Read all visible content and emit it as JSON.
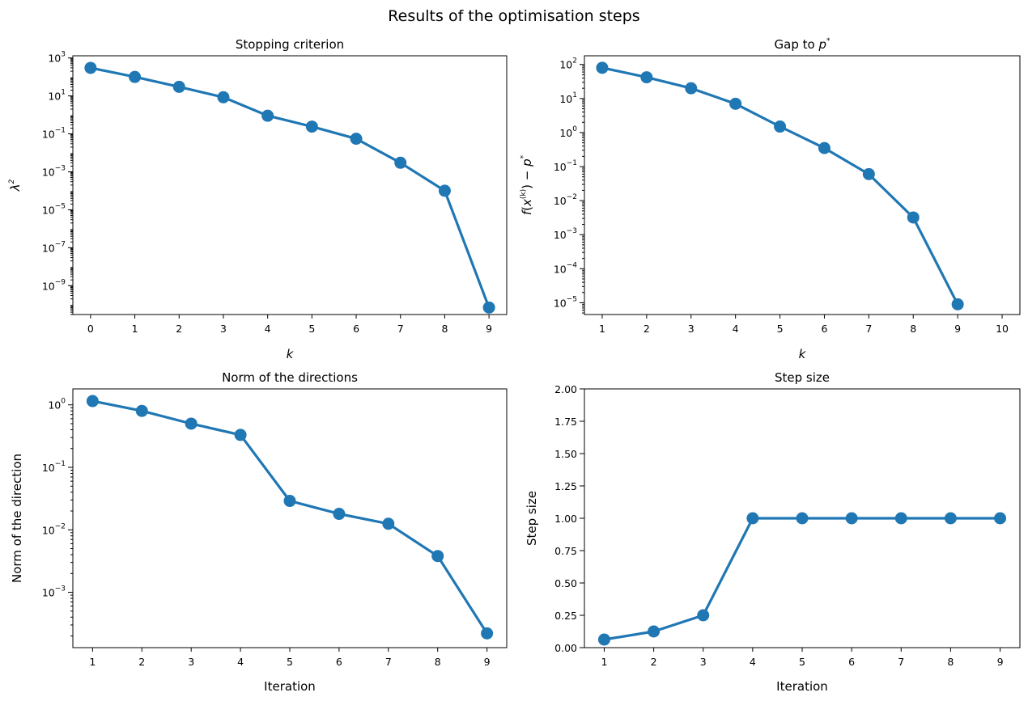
{
  "figure": {
    "title": "Results of the optimisation steps"
  },
  "chart_data": [
    {
      "type": "line",
      "title": "Stopping criterion",
      "xlabel": "k",
      "ylabel": "λ²",
      "yscale": "log",
      "x": [
        0,
        1,
        2,
        3,
        4,
        5,
        6,
        7,
        8,
        9
      ],
      "y": [
        300,
        100,
        30,
        8.5,
        0.9,
        0.24,
        0.055,
        0.003,
        0.0001,
        7e-11
      ],
      "xlim": [
        -0.4,
        9.4
      ],
      "ylim": [
        3e-11,
        1300
      ],
      "xticks": [
        0,
        1,
        2,
        3,
        4,
        5,
        6,
        7,
        8,
        9
      ],
      "yticks": [
        {
          "value": 1000.0,
          "base": "10",
          "exp": "3"
        },
        {
          "value": 10.0,
          "base": "10",
          "exp": "1"
        },
        {
          "value": 0.1,
          "base": "10",
          "exp": "−1"
        },
        {
          "value": 0.001,
          "base": "10",
          "exp": "−3"
        },
        {
          "value": 1e-05,
          "base": "10",
          "exp": "−5"
        },
        {
          "value": 1e-07,
          "base": "10",
          "exp": "−7"
        },
        {
          "value": 1e-09,
          "base": "10",
          "exp": "−9"
        }
      ],
      "color": "#1f77b4"
    },
    {
      "type": "line",
      "title": "Gap to p*",
      "xlabel": "k",
      "ylabel": "f(x^(k)) − p*",
      "yscale": "log",
      "x": [
        1,
        2,
        3,
        4,
        5,
        6,
        7,
        8,
        9
      ],
      "y": [
        80,
        42,
        20,
        7,
        1.5,
        0.35,
        0.06,
        0.0032,
        9e-06
      ],
      "xlim": [
        0.6,
        10.4
      ],
      "ylim": [
        4.5e-06,
        180
      ],
      "xticks": [
        1,
        2,
        3,
        4,
        5,
        6,
        7,
        8,
        9,
        10
      ],
      "yticks": [
        {
          "value": 100.0,
          "base": "10",
          "exp": "2"
        },
        {
          "value": 10.0,
          "base": "10",
          "exp": "1"
        },
        {
          "value": 1.0,
          "base": "10",
          "exp": "0"
        },
        {
          "value": 0.1,
          "base": "10",
          "exp": "−1"
        },
        {
          "value": 0.01,
          "base": "10",
          "exp": "−2"
        },
        {
          "value": 0.001,
          "base": "10",
          "exp": "−3"
        },
        {
          "value": 0.0001,
          "base": "10",
          "exp": "−4"
        },
        {
          "value": 1e-05,
          "base": "10",
          "exp": "−5"
        }
      ],
      "color": "#1f77b4"
    },
    {
      "type": "line",
      "title": "Norm of the directions",
      "xlabel": "Iteration",
      "ylabel": "Norm of the direction",
      "yscale": "log",
      "x": [
        1,
        2,
        3,
        4,
        5,
        6,
        7,
        8,
        9
      ],
      "y": [
        1.15,
        0.8,
        0.5,
        0.33,
        0.029,
        0.018,
        0.0125,
        0.0038,
        0.00022
      ],
      "xlim": [
        0.6,
        9.4
      ],
      "ylim": [
        0.00013,
        1.8
      ],
      "xticks": [
        1,
        2,
        3,
        4,
        5,
        6,
        7,
        8,
        9
      ],
      "yticks": [
        {
          "value": 1.0,
          "base": "10",
          "exp": "0"
        },
        {
          "value": 0.1,
          "base": "10",
          "exp": "−1"
        },
        {
          "value": 0.01,
          "base": "10",
          "exp": "−2"
        },
        {
          "value": 0.001,
          "base": "10",
          "exp": "−3"
        }
      ],
      "color": "#1f77b4"
    },
    {
      "type": "line",
      "title": "Step size",
      "xlabel": "Iteration",
      "ylabel": "Step size",
      "yscale": "linear",
      "x": [
        1,
        2,
        3,
        4,
        5,
        6,
        7,
        8,
        9
      ],
      "y": [
        0.0625,
        0.125,
        0.25,
        1.0,
        1.0,
        1.0,
        1.0,
        1.0,
        1.0
      ],
      "xlim": [
        0.6,
        9.4
      ],
      "ylim": [
        0,
        2
      ],
      "xticks": [
        1,
        2,
        3,
        4,
        5,
        6,
        7,
        8,
        9
      ],
      "yticks": [
        {
          "value": 2.0,
          "label": "2.00"
        },
        {
          "value": 1.75,
          "label": "1.75"
        },
        {
          "value": 1.5,
          "label": "1.50"
        },
        {
          "value": 1.25,
          "label": "1.25"
        },
        {
          "value": 1.0,
          "label": "1.00"
        },
        {
          "value": 0.75,
          "label": "0.75"
        },
        {
          "value": 0.5,
          "label": "0.50"
        },
        {
          "value": 0.25,
          "label": "0.25"
        },
        {
          "value": 0.0,
          "label": "0.00"
        }
      ],
      "color": "#1f77b4"
    }
  ]
}
